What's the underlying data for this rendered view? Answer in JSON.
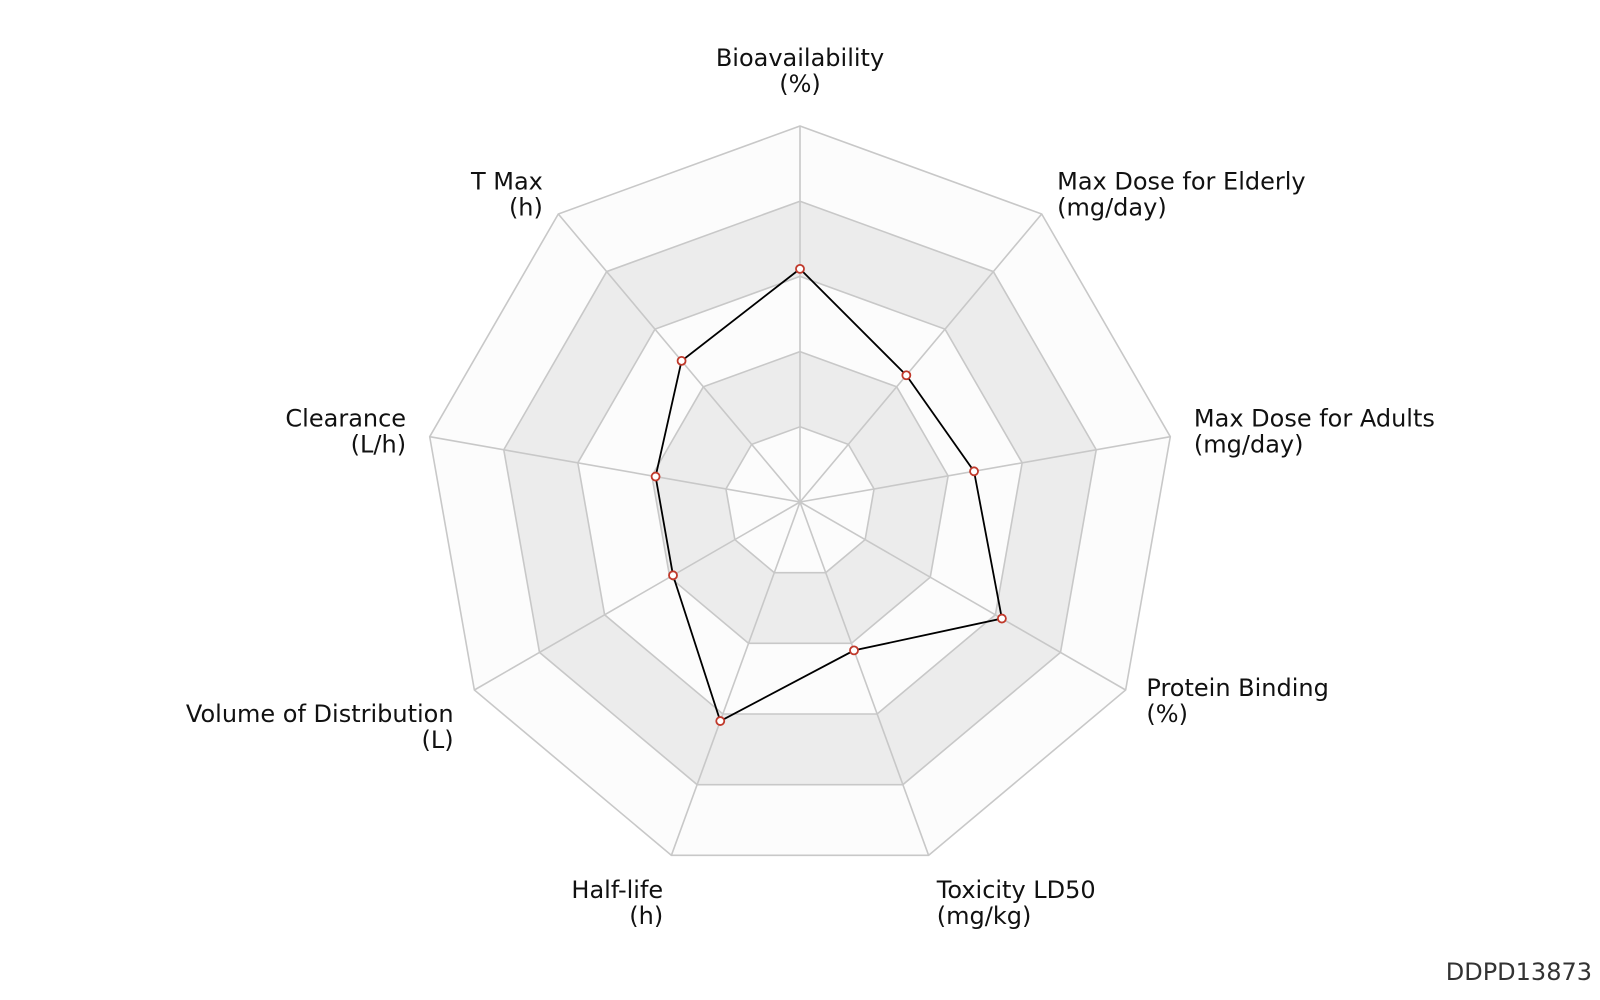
{
  "chart_data": {
    "type": "radar",
    "axes": [
      {
        "name": "Bioavailability",
        "unit": "(%)"
      },
      {
        "name": "Max Dose for Elderly",
        "unit": "(mg/day)"
      },
      {
        "name": "Max Dose for Adults",
        "unit": "(mg/day)"
      },
      {
        "name": "Protein Binding",
        "unit": "(%)"
      },
      {
        "name": "Toxicity LD50",
        "unit": "(mg/kg)"
      },
      {
        "name": "Half-life",
        "unit": "(h)"
      },
      {
        "name": "Volume of Distribution",
        "unit": "(L)"
      },
      {
        "name": "Clearance",
        "unit": "(L/h)"
      },
      {
        "name": "T Max",
        "unit": "(h)"
      }
    ],
    "series": [
      {
        "values": [
          0.62,
          0.44,
          0.47,
          0.62,
          0.42,
          0.62,
          0.39,
          0.39,
          0.49
        ]
      }
    ],
    "range": [
      0,
      1
    ],
    "grid_levels": 5,
    "band_fill": "#ececec",
    "alt_fill": "#fcfcfc",
    "grid_color": "#c8c8c8",
    "line_color": "#000000",
    "marker_color": "#c0392b"
  },
  "watermark": "DDPD13873"
}
